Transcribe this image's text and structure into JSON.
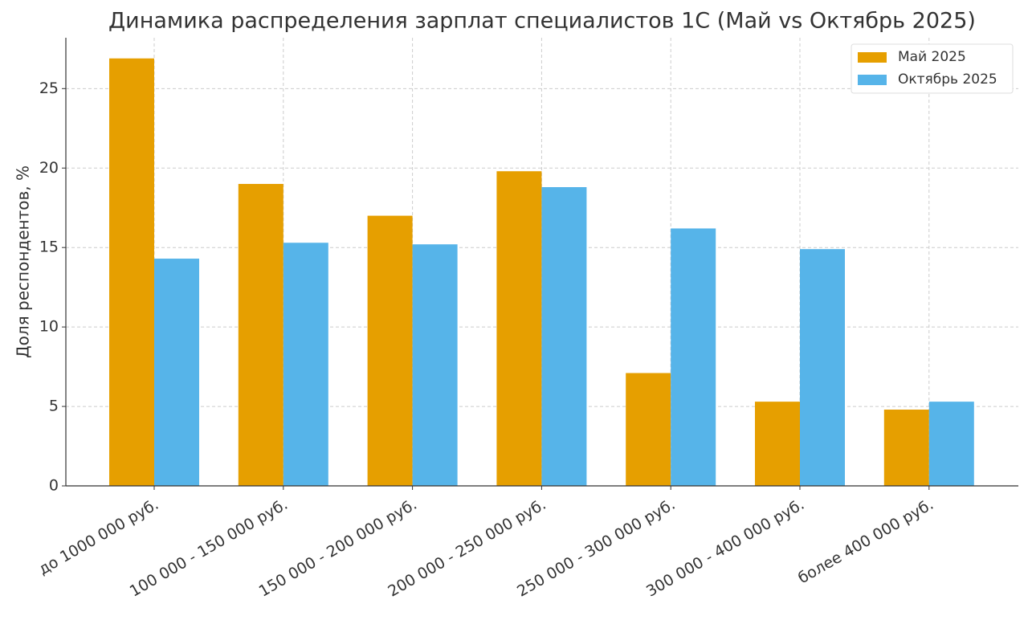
{
  "chart_data": {
    "type": "bar",
    "title": "Динамика распределения зарплат специалистов 1С (Май vs Октябрь 2025)",
    "y_label": "Доля респондентов, %",
    "categories": [
      "до 1000 000 руб.",
      "100 000 - 150 000 руб.",
      "150 000 - 200 000 руб.",
      "200 000 - 250 000 руб.",
      "250 000 - 300 000 руб.",
      "300 000 - 400 000 руб.",
      "более 400 000 руб."
    ],
    "series": [
      {
        "name": "Май 2025",
        "color": "#e69f00",
        "values": [
          26.9,
          19.0,
          17.0,
          19.8,
          7.1,
          5.3,
          4.8
        ]
      },
      {
        "name": "Октябрь 2025",
        "color": "#56b4e9",
        "values": [
          14.3,
          15.3,
          15.2,
          18.8,
          16.2,
          14.9,
          5.3
        ]
      }
    ],
    "ylim": [
      0,
      28.2
    ],
    "yticks": [
      0,
      5,
      10,
      15,
      20,
      25
    ],
    "grid": true,
    "legend": "upper right"
  }
}
